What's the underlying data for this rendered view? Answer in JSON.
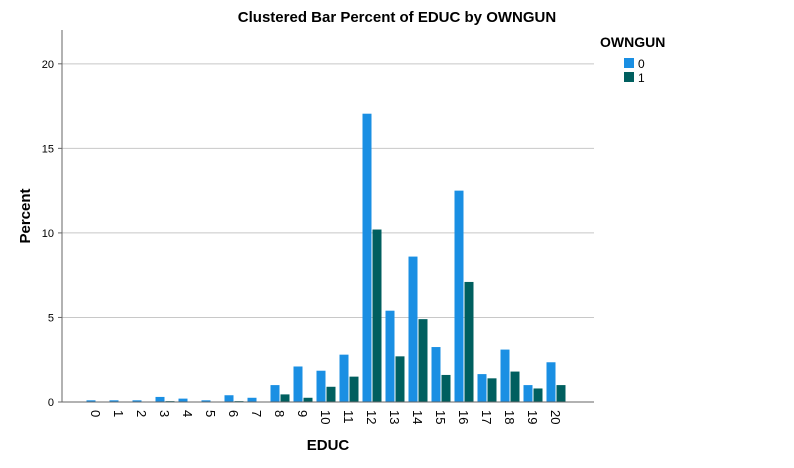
{
  "chart_data": {
    "type": "bar",
    "title": "Clustered Bar Percent of EDUC by OWNGUN",
    "xlabel": "EDUC",
    "ylabel": "Percent",
    "ylim": [
      0,
      22
    ],
    "yticks": [
      0,
      5,
      10,
      15,
      20
    ],
    "grid": true,
    "legend": {
      "title": "OWNGUN",
      "placement": "top-right"
    },
    "categories": [
      "0",
      "1",
      "2",
      "3",
      "4",
      "5",
      "6",
      "7",
      "8",
      "9",
      "10",
      "11",
      "12",
      "13",
      "14",
      "15",
      "16",
      "17",
      "18",
      "19",
      "20"
    ],
    "series": [
      {
        "name": "0",
        "color": "#1a8fe3",
        "values": [
          0.1,
          0.1,
          0.1,
          0.3,
          0.2,
          0.1,
          0.4,
          0.25,
          1.0,
          2.1,
          1.85,
          2.8,
          17.05,
          5.4,
          8.6,
          3.25,
          12.5,
          1.65,
          3.1,
          1.0,
          2.35
        ]
      },
      {
        "name": "1",
        "color": "#005f5f",
        "values": [
          0.0,
          0.0,
          0.0,
          0.05,
          0.0,
          0.0,
          0.05,
          0.0,
          0.45,
          0.25,
          0.9,
          1.5,
          10.2,
          2.7,
          4.9,
          1.6,
          7.1,
          1.4,
          1.8,
          0.8,
          1.0
        ]
      }
    ]
  }
}
